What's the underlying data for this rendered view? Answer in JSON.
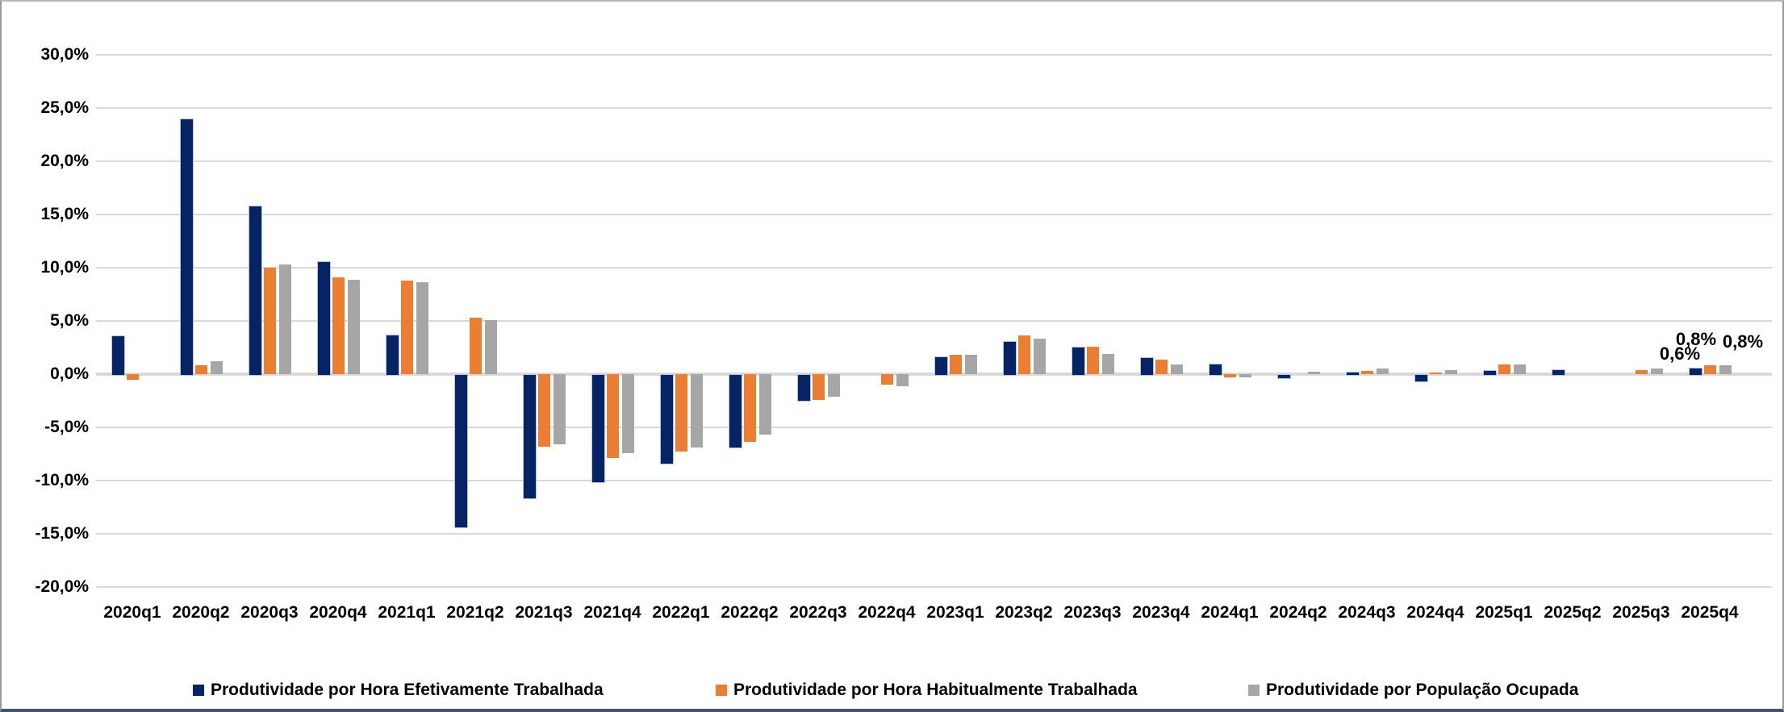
{
  "chart_data": {
    "type": "bar",
    "title": "",
    "categories": [
      "2020q1",
      "2020q2",
      "2020q3",
      "2020q4",
      "2021q1",
      "2021q2",
      "2021q3",
      "2021q4",
      "2022q1",
      "2022q2",
      "2022q3",
      "2022q4",
      "2023q1",
      "2023q2",
      "2023q3",
      "2023q4",
      "2024q1",
      "2024q2",
      "2024q3",
      "2024q4",
      "2025q1",
      "2025q2",
      "2025q3",
      "2025q4"
    ],
    "series": [
      {
        "name": "Produtividade por Hora Efetivamente Trabalhada",
        "color": "#062464",
        "values": [
          3.6,
          24.0,
          15.8,
          10.6,
          3.7,
          -14.3,
          -11.6,
          -10.1,
          -8.3,
          -6.8,
          -2.4,
          0.0,
          1.7,
          3.1,
          2.6,
          1.6,
          1.0,
          -0.3,
          0.2,
          -0.6,
          0.35,
          0.45,
          0.0,
          0.6
        ]
      },
      {
        "name": "Produtividade por Hora Habitualmente Trabalhada",
        "color": "#ED7D31",
        "values": [
          -0.5,
          0.8,
          10.0,
          9.1,
          8.8,
          5.3,
          -6.8,
          -7.9,
          -7.3,
          -6.4,
          -2.4,
          -1.0,
          1.8,
          3.6,
          2.6,
          1.4,
          -0.3,
          0.0,
          0.3,
          0.15,
          0.9,
          0.0,
          0.4,
          0.8
        ]
      },
      {
        "name": "Produtividade por População Ocupada",
        "color": "#A6A6A6",
        "values": [
          0.0,
          1.2,
          10.3,
          8.9,
          8.6,
          5.1,
          -6.6,
          -7.4,
          -6.9,
          -5.7,
          -2.1,
          -1.1,
          1.8,
          3.3,
          1.9,
          0.9,
          -0.3,
          0.2,
          0.55,
          0.4,
          0.9,
          0.0,
          0.5,
          0.8
        ]
      }
    ],
    "y_axis": {
      "tick_labels": [
        "30,0%",
        "25,0%",
        "20,0%",
        "15,0%",
        "10,0%",
        "5,0%",
        "0,0%",
        "-5,0%",
        "-10,0%",
        "-15,0%",
        "-20,0%"
      ],
      "tick_values": [
        30,
        25,
        20,
        15,
        10,
        5,
        0,
        -5,
        -10,
        -15,
        -20
      ],
      "max": 30,
      "min": -20
    },
    "data_labels": [
      {
        "category": "2025q4",
        "series_index": 0,
        "text": "0,6%"
      },
      {
        "category": "2025q4",
        "series_index": 1,
        "text": "0,8%"
      },
      {
        "category": "2025q4",
        "series_index": 2,
        "text": "0,8%"
      }
    ],
    "grid": true,
    "legend_position": "bottom",
    "colors": {
      "gridline": "#D9D9D9",
      "navy_border": "#AEC6E8",
      "frame_bottom": "#44546A"
    }
  }
}
